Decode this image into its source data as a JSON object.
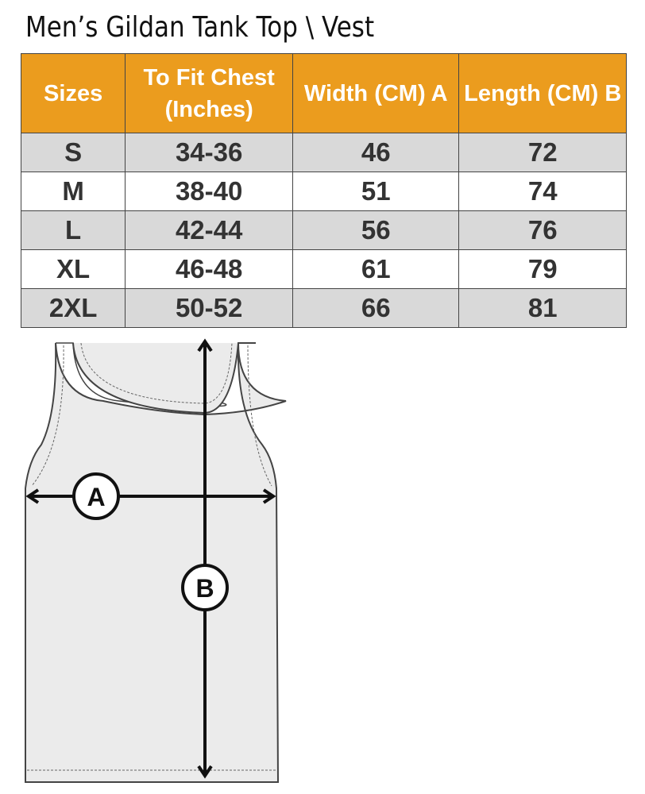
{
  "title": "Men’s Gildan Tank Top \\ Vest",
  "table": {
    "headers": [
      "Sizes",
      "To Fit Chest (Inches)",
      "Width (CM) A",
      "Length  (CM) B"
    ],
    "rows": [
      [
        "S",
        "34-36",
        "46",
        "72"
      ],
      [
        "M",
        "38-40",
        "51",
        "74"
      ],
      [
        "L",
        "42-44",
        "56",
        "76"
      ],
      [
        "XL",
        "46-48",
        "61",
        "79"
      ],
      [
        "2XL",
        "50-52",
        "66",
        "81"
      ]
    ]
  },
  "diagram": {
    "label_a": "A",
    "label_b": "B"
  },
  "colors": {
    "header": "#eb9c1e",
    "row_alt": "#d9d9d9",
    "garment": "#ebebeb"
  }
}
